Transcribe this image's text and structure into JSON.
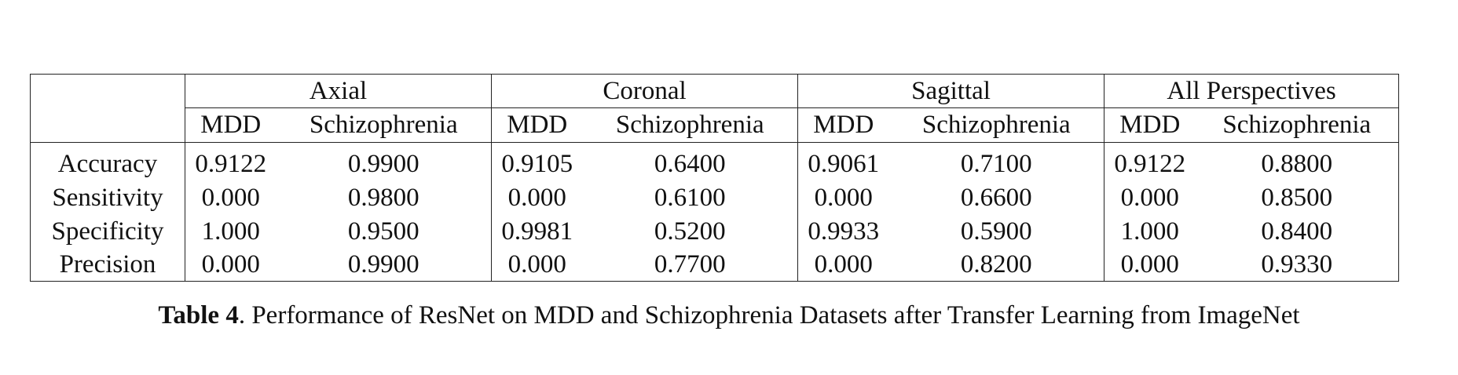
{
  "table": {
    "groups": [
      "Axial",
      "Coronal",
      "Sagittal",
      "All Perspectives"
    ],
    "subcolumns": [
      "MDD",
      "Schizophrenia"
    ],
    "rows": [
      {
        "metric": "Accuracy",
        "values": [
          "0.9122",
          "0.9900",
          "0.9105",
          "0.6400",
          "0.9061",
          "0.7100",
          "0.9122",
          "0.8800"
        ]
      },
      {
        "metric": "Sensitivity",
        "values": [
          "0.000",
          "0.9800",
          "0.000",
          "0.6100",
          "0.000",
          "0.6600",
          "0.000",
          "0.8500"
        ]
      },
      {
        "metric": "Specificity",
        "values": [
          "1.000",
          "0.9500",
          "0.9981",
          "0.5200",
          "0.9933",
          "0.5900",
          "1.000",
          "0.8400"
        ]
      },
      {
        "metric": "Precision",
        "values": [
          "0.000",
          "0.9900",
          "0.000",
          "0.7700",
          "0.000",
          "0.8200",
          "0.000",
          "0.9330"
        ]
      }
    ]
  },
  "caption": {
    "label": "Table 4",
    "text": ". Performance of ResNet on MDD and Schizophrenia Datasets after Transfer Learning from ImageNet"
  }
}
